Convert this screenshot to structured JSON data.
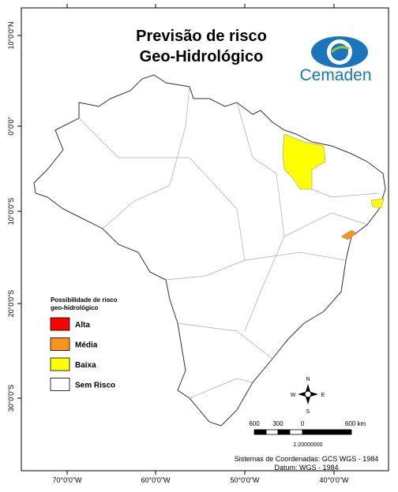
{
  "header": {
    "title": [
      "Previsão de risco",
      "Geo-Hidrológico"
    ],
    "logo": "Cemaden"
  },
  "legend": {
    "title": [
      "Possibilidade de risco",
      "geo-hidrológico"
    ],
    "items": [
      {
        "label": "Alta",
        "color": "#ff0000"
      },
      {
        "label": "Média",
        "color": "#f7941d"
      },
      {
        "label": "Baixa",
        "color": "#ffff00"
      },
      {
        "label": "Sem Risco",
        "color": "#ffffff"
      }
    ]
  },
  "graticule": {
    "latitudes": [
      "10°0'0\"N",
      "0°0'0\"",
      "10°0'0\"S",
      "20°0'0\"S",
      "30°0'0\"S"
    ],
    "longitudes": [
      "70°0'0\"W",
      "60°0'0\"W",
      "50°0'0\"W",
      "40°0'0\"W"
    ]
  },
  "compass": {
    "n": "N",
    "s": "S",
    "e": "E",
    "w": "W"
  },
  "scale": {
    "labels": [
      "600",
      "300",
      "0",
      "600 km"
    ],
    "ratio": "1:20000000"
  },
  "footer": [
    "Sistemas de Coordenadas: GCS WGS - 1984",
    "Datum: WGS - 1984"
  ]
}
